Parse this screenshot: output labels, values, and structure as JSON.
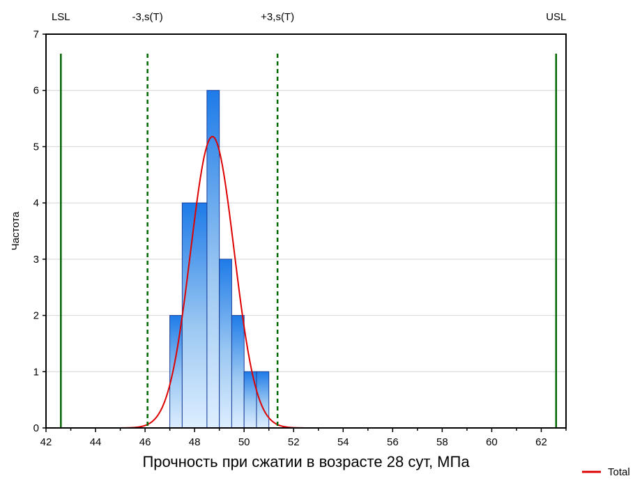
{
  "chart_data": {
    "type": "bar",
    "title": "",
    "xlabel": "Прочность при сжатии в возрасте 28 сут, МПа",
    "ylabel": "Частота",
    "xlim": [
      42,
      63
    ],
    "ylim": [
      0,
      7
    ],
    "x_ticks": [
      "42",
      "44",
      "46",
      "48",
      "50",
      "52",
      "54",
      "56",
      "58",
      "60",
      "62"
    ],
    "y_ticks": [
      "0",
      "1",
      "2",
      "3",
      "4",
      "5",
      "6",
      "7"
    ],
    "grid": "horizontal",
    "bins": [
      {
        "from": 47.0,
        "to": 47.5,
        "count": 2
      },
      {
        "from": 47.5,
        "to": 48.5,
        "count": 4
      },
      {
        "from": 48.5,
        "to": 49.0,
        "count": 6
      },
      {
        "from": 49.0,
        "to": 49.5,
        "count": 3
      },
      {
        "from": 49.5,
        "to": 50.0,
        "count": 2
      },
      {
        "from": 50.0,
        "to": 50.5,
        "count": 1
      },
      {
        "from": 50.5,
        "to": 51.0,
        "count": 1
      }
    ],
    "normal_curve": {
      "name": "Total",
      "color": "#dd0000",
      "mean": 48.72,
      "sd": 0.88,
      "peak": 5.18,
      "x_range": [
        45.0,
        52.5
      ]
    },
    "spec_lines": [
      {
        "label": "LSL",
        "x": 42.6,
        "style": "solid",
        "color": "#006600"
      },
      {
        "label": "-3,s(T)",
        "x": 46.1,
        "style": "dashed",
        "color": "#006600"
      },
      {
        "label": "+3,s(T)",
        "x": 51.35,
        "style": "dashed",
        "color": "#006600"
      },
      {
        "label": "USL",
        "x": 62.6,
        "style": "solid",
        "color": "#006600"
      }
    ],
    "legend": {
      "position": "bottom-right",
      "entries": [
        {
          "name": "Total",
          "color": "#dd0000"
        }
      ]
    },
    "bar_color": "#1e7be8"
  }
}
